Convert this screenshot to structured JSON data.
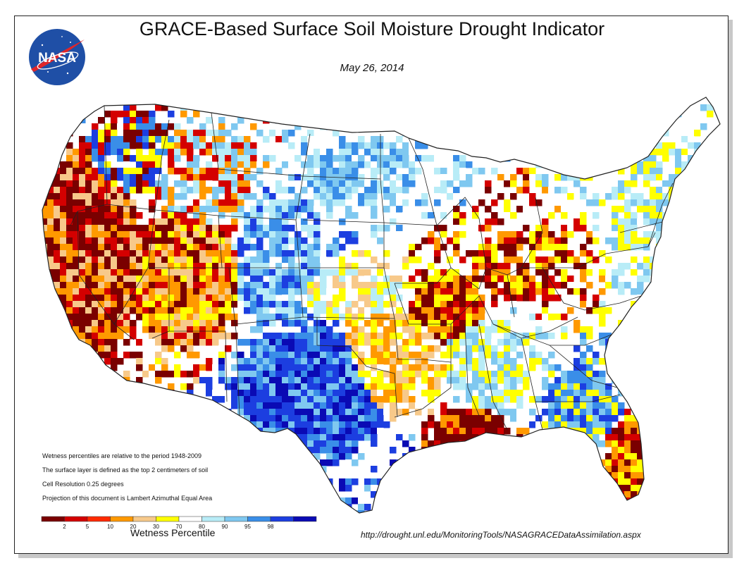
{
  "title": "GRACE-Based Surface Soil  Moisture Drought Indicator",
  "date": "May 26, 2014",
  "logo_text": "NASA",
  "notes": [
    "Wetness percentiles are relative to the period 1948-2009",
    "The surface layer is defined as the top 2 centimeters of soil",
    "Cell Resolution 0.25 degrees",
    "Projection of this document is Lambert Azimuthal Equal Area"
  ],
  "legend": {
    "title": "Wetness Percentile",
    "ticks": [
      "2",
      "5",
      "10",
      "20",
      "30",
      "70",
      "80",
      "90",
      "95",
      "98"
    ],
    "colors": [
      "#7a0000",
      "#d40000",
      "#ff2a00",
      "#ff9900",
      "#f7c98a",
      "#ffff00",
      "#ffffff",
      "#b8ecf7",
      "#7fc8f0",
      "#3a8ee8",
      "#1c3ee0",
      "#0a0ab4"
    ]
  },
  "url": "http://drought.unl.edu/MonitoringTools/NASAGRACEDataAssimilation.aspx",
  "palette": {
    "d_extreme": "#7a0000",
    "d_severe": "#d40000",
    "d_moderate": "#ff9900",
    "d_abnormal": "#f7c98a",
    "d_slight": "#ffff00",
    "normal": "#ffffff",
    "w_slight": "#b8ecf7",
    "w_moderate": "#7fc8f0",
    "w_high": "#3a8ee8",
    "w_very": "#1c3ee0",
    "w_extreme": "#0a0ab4"
  }
}
